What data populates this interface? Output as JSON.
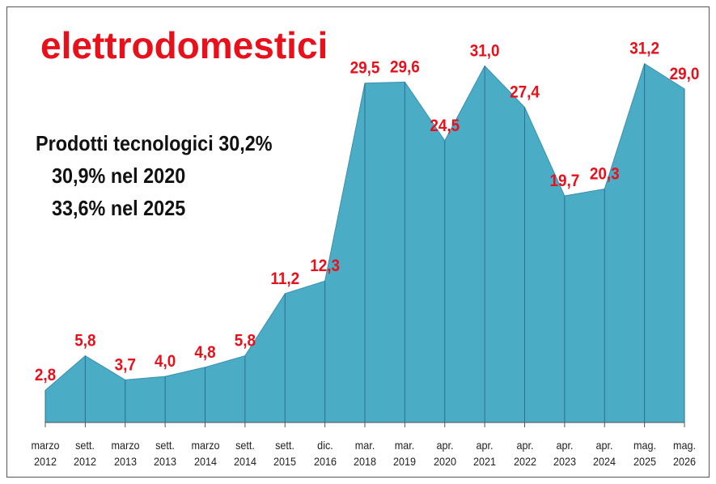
{
  "chart_data": {
    "type": "area",
    "title": "elettrodomestici",
    "annotations": [
      "Prodotti tecnologici 30,2%",
      "30,9% nel 2020",
      "33,6% nel 2025"
    ],
    "categories": [
      "marzo 2012",
      "sett. 2012",
      "marzo 2013",
      "sett. 2013",
      "marzo 2014",
      "sett. 2014",
      "sett. 2015",
      "dic. 2016",
      "mar. 2018",
      "mar. 2019",
      "apr. 2020",
      "apr. 2021",
      "apr. 2022",
      "apr. 2023",
      "apr. 2024",
      "mag. 2025",
      "mag. 2026"
    ],
    "values": [
      2.8,
      5.8,
      3.7,
      4.0,
      4.8,
      5.8,
      11.2,
      12.3,
      29.5,
      29.6,
      24.5,
      31.0,
      27.4,
      19.7,
      20.3,
      31.2,
      29.0
    ],
    "value_labels": [
      "2,8",
      "5,8",
      "3,7",
      "4,0",
      "4,8",
      "5,8",
      "11,2",
      "12,3",
      "29,5",
      "29,6",
      "24,5",
      "31,0",
      "27,4",
      "19,7",
      "20,3",
      "31,2",
      "29,0"
    ],
    "color": "#4bacc6",
    "ylim": [
      0,
      33
    ]
  }
}
